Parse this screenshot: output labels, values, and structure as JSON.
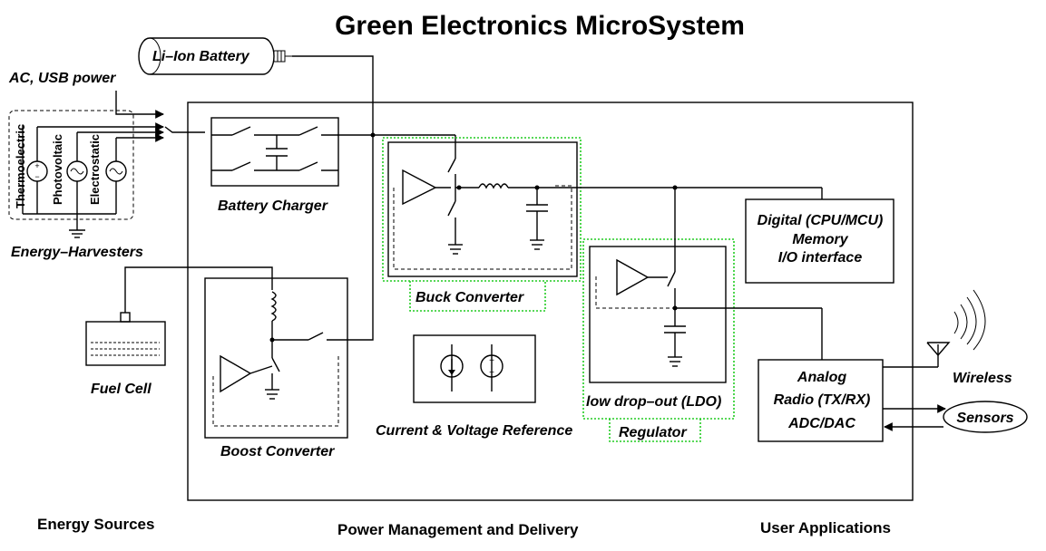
{
  "title": "Green Electronics MicroSystem",
  "sources": {
    "battery": "Li–Ion Battery",
    "ac_usb": "AC, USB power",
    "harvesters": [
      "Thermoelectric",
      "Photovoltaic",
      "Electrostatic"
    ],
    "harvesters_label": "Energy–Harvesters",
    "fuel_cell": "Fuel Cell"
  },
  "blocks": {
    "battery_charger": "Battery  Charger",
    "boost_converter": "Boost  Converter",
    "buck_converter": "Buck   Converter",
    "reference": "Current & Voltage Reference",
    "ldo_line1": "low drop–out (LDO)",
    "ldo_line2": "Regulator"
  },
  "applications": {
    "digital": [
      "Digital (CPU/MCU)",
      "Memory",
      "I/O interface"
    ],
    "analog": [
      "Analog",
      "Radio (TX/RX)",
      "ADC/DAC"
    ],
    "wireless": "Wireless",
    "sensors": "Sensors"
  },
  "footer": {
    "sources": "Energy Sources",
    "management": "Power Management and Delivery",
    "applications": "User Applications"
  },
  "colors": {
    "accent_dotted": "#22cc22",
    "line": "#000000"
  }
}
